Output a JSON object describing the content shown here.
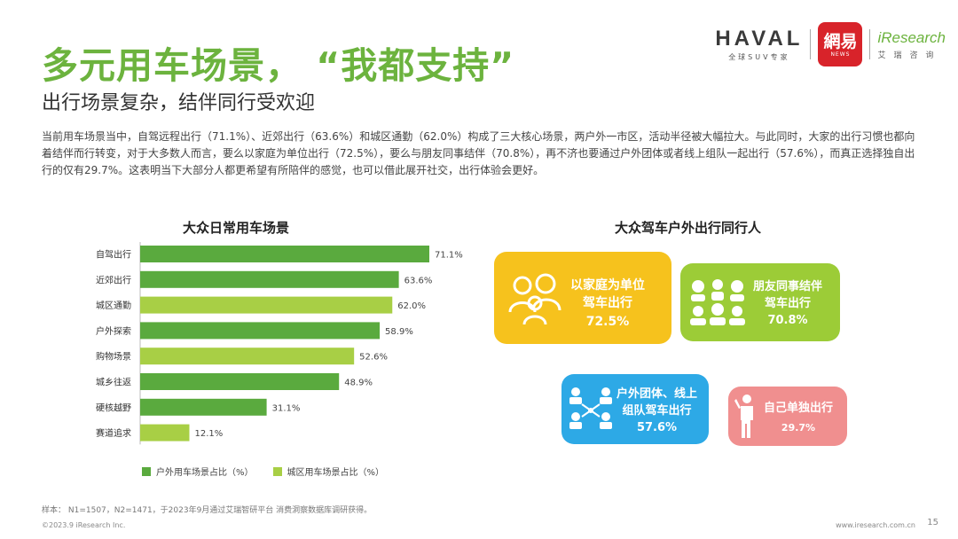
{
  "header": {
    "title": "多元用车场景， “我都支持”",
    "subtitle": "出行场景复杂，结伴同行受欢迎",
    "description": "当前用车场景当中，自驾远程出行（71.1%）、近郊出行（63.6%）和城区通勤（62.0%）构成了三大核心场景，两户外一市区，活动半径被大幅拉大。与此同时，大家的出行习惯也都向着结伴而行转变，对于大多数人而言，要么以家庭为单位出行（72.5%），要么与朋友同事结伴（70.8%），再不济也要通过户外团体或者线上组队一起出行（57.6%），而真正选择独自出行的仅有29.7%。这表明当下大部分人都更希望有所陪伴的感觉，也可以借此展开社交，出行体验会更好。"
  },
  "logos": {
    "haval": "HAVAL",
    "haval_sub": "全球SUV专家",
    "netease": "網易",
    "netease_sub": "NEWS",
    "iresearch": "iResearch",
    "iresearch_sub": "艾瑞咨询"
  },
  "colors": {
    "outdoor": "#5aaa3e",
    "urban": "#a8cf45",
    "yellow": "#f6c21d",
    "green": "#9ccc37",
    "blue": "#2da9e6",
    "pink": "#f08f8f"
  },
  "chart_data": [
    {
      "type": "bar",
      "orientation": "horizontal",
      "title": "大众日常用车场景",
      "categories": [
        "自驾出行",
        "近郊出行",
        "城区通勤",
        "户外探索",
        "购物场景",
        "城乡往返",
        "硬核越野",
        "赛道追求"
      ],
      "values": [
        71.1,
        63.6,
        62.0,
        58.9,
        52.6,
        48.9,
        31.1,
        12.1
      ],
      "value_labels": [
        "71.1%",
        "63.6%",
        "62.0%",
        "58.9%",
        "52.6%",
        "48.9%",
        "31.1%",
        "12.1%"
      ],
      "groups": [
        "outdoor",
        "outdoor",
        "urban",
        "outdoor",
        "urban",
        "outdoor",
        "outdoor",
        "urban"
      ],
      "legend": [
        {
          "key": "outdoor",
          "name": "户外用车场景占比（%）"
        },
        {
          "key": "urban",
          "name": "城区用车场景占比（%）"
        }
      ],
      "xlim": [
        0,
        100
      ],
      "grid": false,
      "legend_position": "bottom"
    },
    {
      "type": "other",
      "title": "大众驾车户外出行同行人",
      "items": [
        {
          "line1": "以家庭为单位",
          "line2": "驾车出行",
          "value": 72.5,
          "label": "72.5%"
        },
        {
          "line1": "朋友同事结伴",
          "line2": "驾车出行",
          "value": 70.8,
          "label": "70.8%"
        },
        {
          "line1": "户外团体、线上",
          "line2": "组队驾车出行",
          "value": 57.6,
          "label": "57.6%"
        },
        {
          "line1": "自己单独出行",
          "line2": "",
          "value": 29.7,
          "label": "29.7%"
        }
      ]
    }
  ],
  "footer": {
    "note": "样本： N1=1507，N2=1471，于2023年9月通过艾瑞智研平台 消费洞察数据库调研获得。",
    "copyright": "©2023.9 iResearch Inc.",
    "website": "www.iresearch.com.cn",
    "page": "15"
  }
}
